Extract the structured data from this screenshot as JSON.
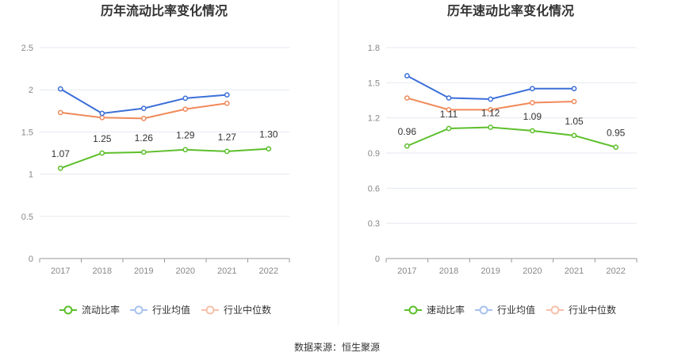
{
  "colors": {
    "current": "#5cbf2a",
    "mean": "#3b6fd8",
    "median": "#f08a5a"
  },
  "legend": {
    "items": [
      {
        "icon": "legend-circle-green"
      },
      {
        "label": "行业均值",
        "icon": "legend-circle-blue"
      },
      {
        "label": "行业中位数",
        "icon": "legend-circle-orange"
      }
    ]
  },
  "footer": {
    "source": "数据来源：恒生聚源"
  },
  "chart_data": [
    {
      "type": "line",
      "title": "历年流动比率变化情况",
      "categories": [
        "2017",
        "2018",
        "2019",
        "2020",
        "2021",
        "2022"
      ],
      "ylim": [
        0,
        2.5
      ],
      "yticks": [
        "0",
        "0.5",
        "1",
        "1.5",
        "2",
        "2.5"
      ],
      "grid": true,
      "legend_position": "bottom",
      "series": [
        {
          "name": "流动比率",
          "values": [
            1.07,
            1.25,
            1.26,
            1.29,
            1.27,
            1.3
          ],
          "labels": [
            "1.07",
            "1.25",
            "1.26",
            "1.29",
            "1.27",
            "1.30"
          ]
        },
        {
          "name": "行业均值",
          "values": [
            2.01,
            1.72,
            1.78,
            1.9,
            1.94,
            null
          ]
        },
        {
          "name": "行业中位数",
          "values": [
            1.73,
            1.67,
            1.66,
            1.77,
            1.84,
            null
          ]
        }
      ]
    },
    {
      "type": "line",
      "title": "历年速动比率变化情况",
      "categories": [
        "2017",
        "2018",
        "2019",
        "2020",
        "2021",
        "2022"
      ],
      "ylim": [
        0,
        1.8
      ],
      "yticks": [
        "0",
        "0.3",
        "0.6",
        "0.9",
        "1.2",
        "1.5",
        "1.8"
      ],
      "grid": true,
      "legend_position": "bottom",
      "series": [
        {
          "name": "速动比率",
          "values": [
            0.96,
            1.11,
            1.12,
            1.09,
            1.05,
            0.95
          ],
          "labels": [
            "0.96",
            "1.11",
            "1.12",
            "1.09",
            "1.05",
            "0.95"
          ]
        },
        {
          "name": "行业均值",
          "values": [
            1.56,
            1.37,
            1.36,
            1.45,
            1.45,
            null
          ]
        },
        {
          "name": "行业中位数",
          "values": [
            1.37,
            1.27,
            1.27,
            1.33,
            1.34,
            null
          ]
        }
      ]
    }
  ]
}
